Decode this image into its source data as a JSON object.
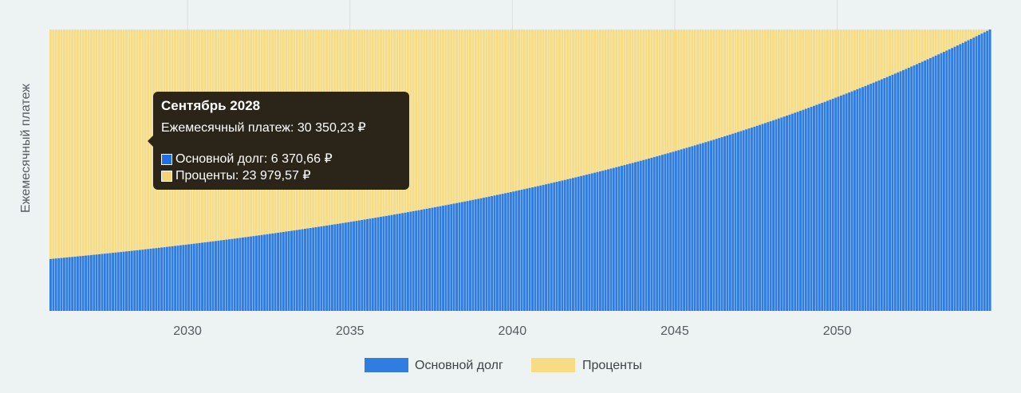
{
  "chart_data": {
    "type": "bar",
    "stacked": true,
    "ylabel": "Ежемесячный платеж",
    "xlabel": "",
    "x_ticks": [
      "2030",
      "2035",
      "2040",
      "2045",
      "2050"
    ],
    "x_range": [
      2025.75,
      2054.75
    ],
    "y_range": [
      0,
      30350.23
    ],
    "monthly_payment": 30350.23,
    "principal_start": 5600,
    "principal_end": 30350.23,
    "months": 348,
    "grid": "vertical",
    "legend_position": "bottom-center",
    "series": [
      {
        "name": "Основной долг",
        "key": "principal",
        "color": "#2f7de0"
      },
      {
        "name": "Проценты",
        "key": "interest",
        "color": "#f7dc84"
      }
    ]
  },
  "tooltip": {
    "title": "Сентябрь 2028",
    "payment_line": "Ежемесячный платеж: 30 350,23 ₽",
    "principal_line": "Основной долг: 6 370,66 ₽",
    "interest_line": "Проценты: 23 979,57 ₽",
    "principal_color": "#1f6fe6",
    "interest_color": "#f4d27a"
  },
  "colors": {
    "bar_separator": "#ffffff",
    "grid": "#d8dfdf",
    "background": "#edf3f2"
  }
}
